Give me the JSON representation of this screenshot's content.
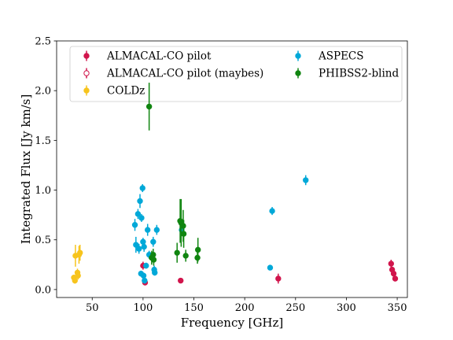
{
  "chart_data": {
    "type": "scatter",
    "xlabel": "Frequency [GHz]",
    "ylabel": "Integrated Flux [Jy km/s]",
    "xlim": [
      15,
      360
    ],
    "ylim": [
      -0.08,
      2.5
    ],
    "xticks": [
      50,
      100,
      150,
      200,
      250,
      300,
      350
    ],
    "yticks": [
      0.0,
      0.5,
      1.0,
      1.5,
      2.0,
      2.5
    ],
    "xtick_labels": [
      "50",
      "100",
      "150",
      "200",
      "250",
      "300",
      "350"
    ],
    "ytick_labels": [
      "0.0",
      "0.5",
      "1.0",
      "1.5",
      "2.0",
      "2.5"
    ],
    "grid": false,
    "legend_position": "top",
    "series": [
      {
        "name": "ALMACAL-CO pilot",
        "color": "#d1154c",
        "marker": "filled",
        "points": [
          {
            "x": 100.0,
            "y": 0.24,
            "err": 0.04
          },
          {
            "x": 102.0,
            "y": 0.07,
            "err": 0.02
          },
          {
            "x": 137.0,
            "y": 0.09,
            "err": 0.02
          },
          {
            "x": 233.0,
            "y": 0.11,
            "err": 0.05
          },
          {
            "x": 344.0,
            "y": 0.26,
            "err": 0.04
          },
          {
            "x": 345.0,
            "y": 0.2,
            "err": 0.03
          },
          {
            "x": 346.5,
            "y": 0.16,
            "err": 0.03
          },
          {
            "x": 348.0,
            "y": 0.11,
            "err": 0.02
          }
        ]
      },
      {
        "name": "ALMACAL-CO pilot (maybes)",
        "color": "#d1154c",
        "marker": "open",
        "points": []
      },
      {
        "name": "COLDz",
        "color": "#f7c41d",
        "marker": "filled",
        "points": [
          {
            "x": 32.0,
            "y": 0.12,
            "err": 0.03
          },
          {
            "x": 33.0,
            "y": 0.09,
            "err": 0.03
          },
          {
            "x": 33.5,
            "y": 0.34,
            "err": 0.11
          },
          {
            "x": 35.5,
            "y": 0.17,
            "err": 0.04
          },
          {
            "x": 36.0,
            "y": 0.14,
            "err": 0.04
          },
          {
            "x": 37.0,
            "y": 0.35,
            "err": 0.09
          },
          {
            "x": 38.0,
            "y": 0.37,
            "err": 0.08
          }
        ]
      },
      {
        "name": "ASPECS",
        "color": "#00a8d8",
        "marker": "filled",
        "points": [
          {
            "x": 92.0,
            "y": 0.65,
            "err": 0.06
          },
          {
            "x": 93.0,
            "y": 0.45,
            "err": 0.08
          },
          {
            "x": 95.0,
            "y": 0.76,
            "err": 0.05
          },
          {
            "x": 96.0,
            "y": 0.41,
            "err": 0.05
          },
          {
            "x": 97.0,
            "y": 0.89,
            "err": 0.07
          },
          {
            "x": 98.0,
            "y": 0.16,
            "err": 0.03
          },
          {
            "x": 98.5,
            "y": 0.72,
            "err": 0.04
          },
          {
            "x": 99.5,
            "y": 1.02,
            "err": 0.04
          },
          {
            "x": 100.0,
            "y": 0.48,
            "err": 0.04
          },
          {
            "x": 100.5,
            "y": 0.14,
            "err": 0.03
          },
          {
            "x": 101.5,
            "y": 0.09,
            "err": 0.03
          },
          {
            "x": 101.0,
            "y": 0.43,
            "err": 0.05
          },
          {
            "x": 103.0,
            "y": 0.24,
            "err": 0.03
          },
          {
            "x": 104.5,
            "y": 0.6,
            "err": 0.06
          },
          {
            "x": 106.0,
            "y": 0.35,
            "err": 0.04
          },
          {
            "x": 110.0,
            "y": 0.48,
            "err": 0.05
          },
          {
            "x": 111.0,
            "y": 0.2,
            "err": 0.04
          },
          {
            "x": 111.5,
            "y": 0.17,
            "err": 0.03
          },
          {
            "x": 113.5,
            "y": 0.6,
            "err": 0.05
          },
          {
            "x": 138.0,
            "y": 0.6,
            "err": 0.05
          },
          {
            "x": 225.0,
            "y": 0.22,
            "err": 0.02
          },
          {
            "x": 227.0,
            "y": 0.79,
            "err": 0.04
          },
          {
            "x": 260.0,
            "y": 1.1,
            "err": 0.05
          }
        ]
      },
      {
        "name": "PHIBSS2-blind",
        "color": "#108510",
        "marker": "filled",
        "points": [
          {
            "x": 106.0,
            "y": 1.84,
            "err": 0.24
          },
          {
            "x": 108.5,
            "y": 0.32,
            "err": 0.07
          },
          {
            "x": 110.0,
            "y": 0.35,
            "err": 0.06
          },
          {
            "x": 110.5,
            "y": 0.3,
            "err": 0.06
          },
          {
            "x": 133.5,
            "y": 0.37,
            "err": 0.1
          },
          {
            "x": 136.5,
            "y": 0.69,
            "err": 0.22
          },
          {
            "x": 137.5,
            "y": 0.67,
            "err": 0.24
          },
          {
            "x": 139.5,
            "y": 0.64,
            "err": 0.16
          },
          {
            "x": 140.0,
            "y": 0.56,
            "err": 0.14
          },
          {
            "x": 142.0,
            "y": 0.34,
            "err": 0.06
          },
          {
            "x": 153.5,
            "y": 0.32,
            "err": 0.06
          },
          {
            "x": 154.0,
            "y": 0.4,
            "err": 0.12
          }
        ]
      }
    ]
  }
}
